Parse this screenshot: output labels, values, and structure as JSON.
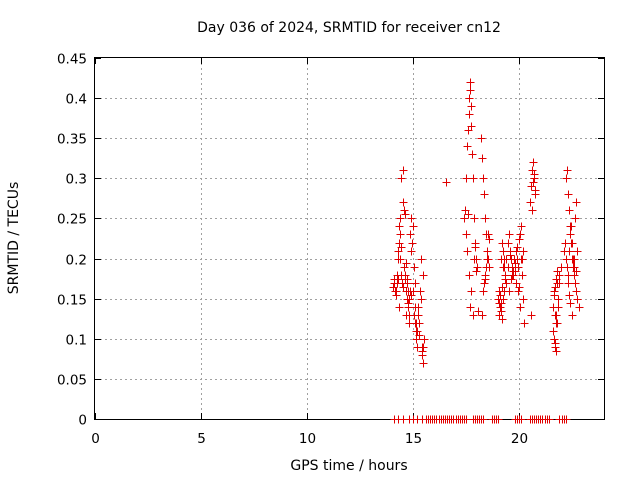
{
  "chart_data": {
    "type": "scatter",
    "title": "Day 036 of 2024, SRMTID for receiver cn12",
    "xlabel": "GPS time / hours",
    "ylabel": "SRMTID / TECUs",
    "xlim": [
      0,
      24
    ],
    "ylim": [
      0,
      0.45
    ],
    "xticks": [
      "0",
      "5",
      "10",
      "15",
      "20"
    ],
    "xtick_values": [
      0,
      5,
      10,
      15,
      20
    ],
    "yticks": [
      "0",
      "0.05",
      "0.1",
      "0.15",
      "0.2",
      "0.25",
      "0.3",
      "0.35",
      "0.4",
      "0.45"
    ],
    "ytick_values": [
      0,
      0.05,
      0.1,
      0.15,
      0.2,
      0.25,
      0.3,
      0.35,
      0.4,
      0.45
    ],
    "grid": true,
    "marker": "plus",
    "color": "#e00000",
    "series": [
      {
        "name": "SRMTID",
        "x": [
          14.05,
          14.1,
          14.15,
          14.2,
          14.25,
          14.3,
          14.35,
          14.4,
          14.45,
          14.5,
          14.55,
          14.6,
          14.65,
          14.7,
          14.75,
          14.8,
          14.85,
          14.9,
          14.95,
          15.0,
          15.05,
          15.1,
          15.15,
          15.2,
          15.25,
          15.3,
          15.35,
          15.4,
          15.45,
          15.5,
          14.12,
          14.18,
          14.22,
          14.28,
          14.33,
          14.38,
          14.42,
          14.48,
          14.52,
          14.58,
          14.62,
          14.68,
          14.72,
          14.78,
          14.82,
          14.88,
          14.92,
          14.98,
          15.02,
          15.08,
          15.12,
          15.18,
          15.22,
          15.28,
          15.32,
          15.38,
          15.42,
          15.48,
          14.3,
          14.35,
          14.4,
          14.45,
          14.5,
          14.55,
          14.6,
          14.65,
          14.7,
          14.75,
          14.8,
          14.85,
          15.1,
          15.15,
          15.2,
          15.25,
          15.3,
          15.4,
          15.45,
          16.55,
          17.4,
          17.45,
          17.5,
          17.55,
          17.6,
          17.62,
          17.65,
          17.68,
          17.7,
          17.72,
          17.75,
          17.78,
          17.8,
          17.85,
          17.9,
          17.95,
          18.0,
          17.5,
          17.55,
          17.6,
          17.65,
          17.7,
          17.75,
          17.8,
          17.85,
          17.9,
          17.95,
          18.05,
          18.2,
          18.25,
          18.3,
          18.35,
          18.4,
          18.45,
          18.5,
          18.55,
          18.6,
          18.3,
          18.35,
          18.4,
          18.45,
          18.5,
          18.55,
          18.25,
          18.3,
          18.4,
          18.5,
          18.6,
          19.0,
          19.05,
          19.1,
          19.15,
          19.2,
          19.25,
          19.3,
          19.35,
          19.4,
          19.45,
          19.5,
          19.55,
          19.6,
          19.65,
          19.7,
          19.75,
          19.8,
          19.85,
          19.9,
          19.95,
          20.0,
          20.05,
          20.1,
          20.15,
          20.2,
          20.25,
          19.05,
          19.1,
          19.15,
          19.2,
          19.25,
          19.3,
          19.4,
          19.5,
          19.6,
          19.7,
          19.8,
          19.9,
          20.0,
          20.1,
          20.2,
          19.05,
          19.1,
          19.15,
          19.2,
          19.25,
          19.3,
          19.35,
          19.45,
          19.55,
          19.65,
          19.75,
          19.85,
          19.95,
          20.05,
          20.15,
          20.5,
          20.55,
          20.6,
          20.65,
          20.7,
          20.75,
          20.6,
          20.65,
          20.7,
          20.75,
          20.55,
          21.6,
          21.65,
          21.7,
          21.75,
          21.8,
          21.85,
          21.9,
          21.95,
          21.6,
          21.65,
          21.7,
          21.75,
          21.8,
          21.85,
          21.9,
          21.65,
          21.7,
          21.75,
          21.8,
          21.7,
          21.75,
          22.1,
          22.15,
          22.2,
          22.25,
          22.3,
          22.35,
          22.4,
          22.45,
          22.5,
          22.55,
          22.6,
          22.65,
          22.7,
          22.75,
          22.8,
          22.2,
          22.25,
          22.3,
          22.35,
          22.4,
          22.45,
          22.5,
          22.55,
          22.6,
          22.65,
          22.7,
          22.75,
          22.3,
          22.35,
          22.4,
          22.5,
          22.6,
          22.7,
          14.1,
          14.3,
          14.5,
          14.8,
          15.0,
          15.2,
          15.4,
          15.6,
          15.7,
          15.8,
          15.9,
          16.0,
          16.1,
          16.2,
          16.3,
          16.4,
          16.5,
          16.6,
          16.7,
          16.8,
          16.9,
          17.0,
          17.1,
          17.2,
          17.3,
          17.4,
          17.5,
          17.8,
          17.9,
          18.0,
          18.1,
          18.2,
          18.3,
          18.7,
          18.8,
          18.9,
          19.0,
          19.8,
          19.9,
          20.0,
          20.1,
          20.5,
          20.6,
          20.7,
          20.8,
          20.9,
          21.0,
          21.1,
          21.2,
          21.3,
          21.4,
          21.9,
          22.0,
          22.1,
          22.2
        ],
        "y": [
          0.165,
          0.175,
          0.16,
          0.155,
          0.17,
          0.2,
          0.22,
          0.25,
          0.3,
          0.27,
          0.19,
          0.18,
          0.16,
          0.15,
          0.14,
          0.13,
          0.23,
          0.25,
          0.22,
          0.16,
          0.13,
          0.12,
          0.1,
          0.11,
          0.13,
          0.12,
          0.15,
          0.08,
          0.07,
          0.1,
          0.17,
          0.16,
          0.18,
          0.21,
          0.24,
          0.23,
          0.18,
          0.17,
          0.31,
          0.26,
          0.255,
          0.195,
          0.17,
          0.145,
          0.12,
          0.155,
          0.21,
          0.24,
          0.19,
          0.17,
          0.11,
          0.09,
          0.14,
          0.12,
          0.16,
          0.2,
          0.085,
          0.18,
          0.175,
          0.14,
          0.2,
          0.215,
          0.165,
          0.19,
          0.175,
          0.13,
          0.175,
          0.16,
          0.15,
          0.16,
          0.14,
          0.12,
          0.11,
          0.13,
          0.105,
          0.09,
          0.09,
          0.295,
          0.25,
          0.26,
          0.3,
          0.34,
          0.36,
          0.38,
          0.4,
          0.42,
          0.41,
          0.39,
          0.365,
          0.33,
          0.3,
          0.25,
          0.22,
          0.2,
          0.19,
          0.23,
          0.21,
          0.255,
          0.18,
          0.14,
          0.16,
          0.13,
          0.2,
          0.215,
          0.185,
          0.135,
          0.35,
          0.325,
          0.3,
          0.28,
          0.25,
          0.23,
          0.21,
          0.2,
          0.19,
          0.16,
          0.17,
          0.18,
          0.19,
          0.2,
          0.23,
          0.13,
          0.16,
          0.175,
          0.21,
          0.225,
          0.15,
          0.16,
          0.14,
          0.2,
          0.22,
          0.21,
          0.19,
          0.18,
          0.2,
          0.22,
          0.23,
          0.21,
          0.2,
          0.19,
          0.18,
          0.2,
          0.185,
          0.21,
          0.2,
          0.19,
          0.165,
          0.23,
          0.2,
          0.18,
          0.15,
          0.12,
          0.13,
          0.14,
          0.145,
          0.165,
          0.19,
          0.2,
          0.17,
          0.16,
          0.175,
          0.185,
          0.195,
          0.215,
          0.225,
          0.24,
          0.21,
          0.145,
          0.155,
          0.135,
          0.125,
          0.15,
          0.16,
          0.175,
          0.19,
          0.205,
          0.18,
          0.2,
          0.17,
          0.16,
          0.14,
          0.2,
          0.27,
          0.29,
          0.31,
          0.32,
          0.3,
          0.28,
          0.26,
          0.295,
          0.305,
          0.285,
          0.13,
          0.14,
          0.16,
          0.13,
          0.12,
          0.17,
          0.15,
          0.18,
          0.19,
          0.11,
          0.1,
          0.09,
          0.085,
          0.12,
          0.14,
          0.17,
          0.155,
          0.165,
          0.175,
          0.185,
          0.095,
          0.13,
          0.21,
          0.22,
          0.3,
          0.31,
          0.28,
          0.26,
          0.24,
          0.22,
          0.2,
          0.19,
          0.18,
          0.17,
          0.16,
          0.15,
          0.14,
          0.2,
          0.19,
          0.18,
          0.21,
          0.23,
          0.24,
          0.22,
          0.2,
          0.19,
          0.25,
          0.27,
          0.21,
          0.17,
          0.155,
          0.145,
          0.13,
          0.2,
          0.185,
          0,
          0,
          0,
          0,
          0,
          0,
          0,
          0,
          0,
          0,
          0,
          0,
          0,
          0,
          0,
          0,
          0,
          0,
          0,
          0,
          0,
          0,
          0,
          0,
          0,
          0,
          0,
          0,
          0,
          0,
          0,
          0,
          0,
          0,
          0,
          0,
          0,
          0,
          0,
          0,
          0,
          0,
          0,
          0,
          0,
          0,
          0,
          0,
          0,
          0,
          0,
          0,
          0,
          0,
          0
        ]
      }
    ]
  }
}
